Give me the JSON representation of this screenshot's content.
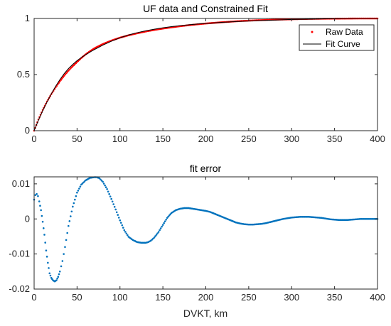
{
  "chart_data": [
    {
      "type": "scatter",
      "title": "UF data and Constrained Fit",
      "xlabel": "",
      "ylabel": "",
      "xlim": [
        0,
        400
      ],
      "ylim": [
        0,
        1
      ],
      "xticks": [
        "0",
        "50",
        "100",
        "150",
        "200",
        "250",
        "300",
        "350",
        "400"
      ],
      "yticks": [
        "0",
        "0.5",
        "1"
      ],
      "legend": {
        "position": "top-right",
        "entries": [
          "Raw Data",
          "Fit Curve"
        ]
      },
      "series": [
        {
          "name": "Raw Data",
          "style": "dots",
          "color": "#ff0000",
          "x": [
            0,
            5,
            10,
            15,
            20,
            25,
            30,
            35,
            40,
            45,
            50,
            55,
            60,
            65,
            70,
            75,
            80,
            90,
            100,
            110,
            120,
            130,
            140,
            150,
            160,
            170,
            180,
            190,
            200,
            220,
            240,
            260,
            280,
            300,
            320,
            340,
            360,
            380,
            400
          ],
          "y": [
            0,
            0.1,
            0.185,
            0.26,
            0.325,
            0.385,
            0.44,
            0.49,
            0.535,
            0.575,
            0.612,
            0.648,
            0.68,
            0.708,
            0.733,
            0.753,
            0.772,
            0.803,
            0.829,
            0.85,
            0.868,
            0.884,
            0.898,
            0.91,
            0.921,
            0.931,
            0.94,
            0.948,
            0.955,
            0.967,
            0.977,
            0.984,
            0.989,
            0.993,
            0.996,
            0.998,
            0.999,
            1.0,
            1.0
          ]
        },
        {
          "name": "Fit Curve",
          "style": "line",
          "color": "#000000",
          "x": [
            0,
            5,
            10,
            15,
            20,
            25,
            30,
            35,
            40,
            45,
            50,
            55,
            60,
            65,
            70,
            75,
            80,
            90,
            100,
            110,
            120,
            130,
            140,
            150,
            160,
            170,
            180,
            190,
            200,
            220,
            240,
            260,
            280,
            300,
            320,
            340,
            360,
            380,
            400
          ],
          "y": [
            0,
            0.093,
            0.178,
            0.256,
            0.328,
            0.395,
            0.455,
            0.508,
            0.553,
            0.591,
            0.624,
            0.652,
            0.677,
            0.7,
            0.722,
            0.742,
            0.762,
            0.797,
            0.828,
            0.853,
            0.873,
            0.89,
            0.904,
            0.917,
            0.927,
            0.936,
            0.943,
            0.95,
            0.956,
            0.966,
            0.974,
            0.981,
            0.986,
            0.991,
            0.994,
            0.997,
            0.999,
            1.0,
            1.0
          ]
        }
      ]
    },
    {
      "type": "scatter",
      "title": "fit error",
      "xlabel": "DVKT, km",
      "ylabel": "",
      "xlim": [
        0,
        400
      ],
      "ylim": [
        -0.02,
        0.012
      ],
      "xticks": [
        "0",
        "50",
        "100",
        "150",
        "200",
        "250",
        "300",
        "350",
        "400"
      ],
      "yticks": [
        "0.01",
        "0",
        "-0.01",
        "-0.02"
      ],
      "series": [
        {
          "style": "dots",
          "color": "#0072bd",
          "x": [
            0,
            1.5,
            3,
            4.5,
            6,
            8,
            10,
            12,
            14,
            16,
            18,
            20,
            22,
            24,
            26,
            28,
            30,
            33,
            36,
            40,
            45,
            50,
            55,
            60,
            65,
            70,
            73,
            76,
            80,
            85,
            90,
            95,
            100,
            105,
            110,
            115,
            120,
            125,
            130,
            133,
            136,
            140,
            145,
            150,
            155,
            160,
            165,
            170,
            175,
            180,
            185,
            190,
            195,
            200,
            205,
            210,
            215,
            220,
            225,
            230,
            235,
            240,
            245,
            250,
            255,
            260,
            265,
            270,
            275,
            280,
            285,
            290,
            295,
            300,
            305,
            310,
            315,
            320,
            325,
            330,
            335,
            340,
            345,
            350,
            355,
            360,
            365,
            370,
            375,
            380,
            385,
            390,
            395,
            400
          ],
          "y": [
            0.0055,
            0.0068,
            0.0071,
            0.0065,
            0.005,
            0.0025,
            -0.0008,
            -0.0045,
            -0.009,
            -0.0125,
            -0.0155,
            -0.0168,
            -0.0175,
            -0.0178,
            -0.0175,
            -0.0165,
            -0.015,
            -0.012,
            -0.008,
            -0.002,
            0.0035,
            0.0075,
            0.0098,
            0.011,
            0.0117,
            0.0119,
            0.0119,
            0.0116,
            0.0106,
            0.0085,
            0.0057,
            0.0027,
            -0.0004,
            -0.0032,
            -0.0051,
            -0.006,
            -0.0066,
            -0.0068,
            -0.0068,
            -0.0066,
            -0.0062,
            -0.0053,
            -0.0037,
            -0.0017,
            0.0003,
            0.0017,
            0.0025,
            0.0029,
            0.0031,
            0.0031,
            0.0029,
            0.0027,
            0.0025,
            0.0023,
            0.002,
            0.0015,
            0.001,
            0.0005,
            0.0,
            -0.0005,
            -0.001,
            -0.0013,
            -0.0015,
            -0.0016,
            -0.0016,
            -0.0015,
            -0.0014,
            -0.0012,
            -0.0009,
            -0.0006,
            -0.0003,
            0.0,
            0.0002,
            0.0004,
            0.0005,
            0.0006,
            0.0006,
            0.0006,
            0.0005,
            0.0004,
            0.0003,
            0.0001,
            -0.0001,
            -0.0002,
            -0.0003,
            -0.0003,
            -0.0003,
            -0.0002,
            -0.0001,
            0.0,
            0.0,
            0.0,
            0.0,
            0.0
          ]
        }
      ]
    }
  ]
}
